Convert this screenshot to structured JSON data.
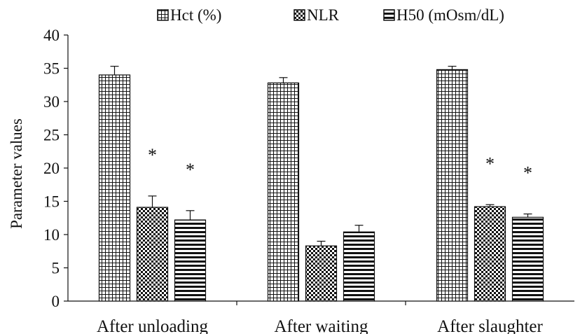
{
  "chart_data": {
    "type": "bar",
    "title": "",
    "xlabel": "",
    "ylabel": "Parameter values",
    "ylim": [
      0,
      40
    ],
    "yticks": [
      0,
      5,
      10,
      15,
      20,
      25,
      30,
      35,
      40
    ],
    "grid": false,
    "legend_position": "top",
    "categories": [
      "After unloading",
      "After waiting",
      "After slaughter"
    ],
    "series": [
      {
        "name": "Hct (%)",
        "pattern": "grid",
        "values": [
          34.0,
          32.8,
          34.8
        ],
        "errors": [
          1.3,
          0.8,
          0.5
        ],
        "significance": [
          "",
          "",
          ""
        ]
      },
      {
        "name": "NLR",
        "pattern": "checker",
        "values": [
          14.1,
          8.3,
          14.2
        ],
        "errors": [
          1.7,
          0.7,
          0.3
        ],
        "significance": [
          "*",
          "",
          "*"
        ]
      },
      {
        "name": "H50 (mOsm/dL)",
        "pattern": "horizontal-stripes",
        "values": [
          12.2,
          10.4,
          12.6
        ],
        "errors": [
          1.4,
          1.0,
          0.5
        ],
        "significance": [
          "*",
          "",
          "*"
        ]
      }
    ],
    "colors": {
      "ink": "#111111",
      "background": "#ffffff"
    }
  }
}
